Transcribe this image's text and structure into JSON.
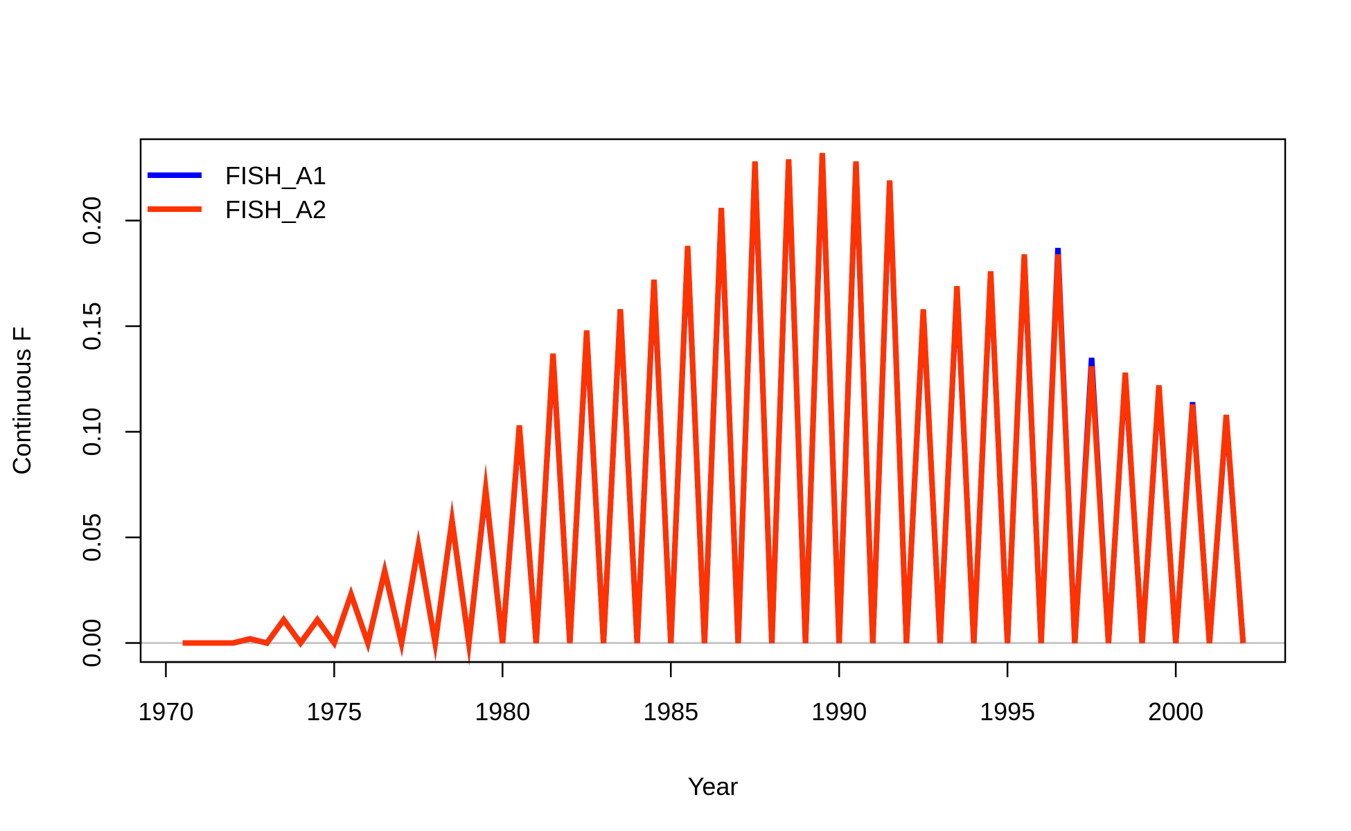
{
  "chart_data": {
    "type": "line",
    "title": "",
    "xlabel": "Year",
    "ylabel": "Continuous F",
    "xlim": [
      1969.25,
      2003.25
    ],
    "ylim": [
      -0.009,
      0.2385
    ],
    "x_ticks": [
      1970,
      1975,
      1980,
      1985,
      1990,
      1995,
      2000
    ],
    "x_tick_labels": [
      "1970",
      "1975",
      "1980",
      "1985",
      "1990",
      "1995",
      "2000"
    ],
    "y_ticks": [
      0.0,
      0.05,
      0.1,
      0.15,
      0.2
    ],
    "y_tick_labels": [
      "0.00",
      "0.05",
      "0.10",
      "0.15",
      "0.20"
    ],
    "grid": false,
    "reference_line": {
      "y": 0,
      "color": "#bebebe"
    },
    "legend": {
      "position": "top-left"
    },
    "x": [
      1970.5,
      1971.0,
      1971.5,
      1972.0,
      1972.5,
      1973.0,
      1973.5,
      1974.0,
      1974.5,
      1975.0,
      1975.5,
      1976.0,
      1976.5,
      1977.0,
      1977.5,
      1978.0,
      1978.5,
      1979.0,
      1979.5,
      1980.0,
      1980.5,
      1981.0,
      1981.5,
      1982.0,
      1982.5,
      1983.0,
      1983.5,
      1984.0,
      1984.5,
      1985.0,
      1985.5,
      1986.0,
      1986.5,
      1987.0,
      1987.5,
      1988.0,
      1988.5,
      1989.0,
      1989.5,
      1990.0,
      1990.5,
      1991.0,
      1991.5,
      1992.0,
      1992.5,
      1993.0,
      1993.5,
      1994.0,
      1994.5,
      1995.0,
      1995.5,
      1996.0,
      1996.5,
      1997.0,
      1997.5,
      1998.0,
      1998.5,
      1999.0,
      1999.5,
      2000.0,
      2000.5,
      2001.0,
      2001.5,
      2002.0
    ],
    "series": [
      {
        "name": "FISH_A1",
        "color": "#0000ff",
        "values": [
          0,
          0,
          0,
          0,
          0.002,
          0,
          0.011,
          0,
          0.011,
          0,
          0.023,
          0,
          0.034,
          0,
          0.046,
          0,
          0.058,
          0,
          0.072,
          0,
          0.102,
          0,
          0.136,
          0,
          0.147,
          0,
          0.158,
          0,
          0.171,
          0,
          0.187,
          0,
          0.205,
          0,
          0.227,
          0,
          0.228,
          0,
          0.231,
          0,
          0.227,
          0,
          0.218,
          0,
          0.157,
          0,
          0.168,
          0,
          0.175,
          0,
          0.183,
          0,
          0.187,
          0,
          0.135,
          0,
          0.127,
          0,
          0.121,
          0,
          0.114,
          0,
          0.107,
          0
        ]
      },
      {
        "name": "FISH_A2",
        "color": "#ff3300",
        "values": [
          0,
          0,
          0,
          0,
          0.002,
          0,
          0.011,
          0,
          0.011,
          0,
          0.023,
          0,
          0.034,
          0,
          0.046,
          0,
          0.058,
          0,
          0.073,
          0,
          0.103,
          0,
          0.137,
          0,
          0.148,
          0,
          0.158,
          0,
          0.172,
          0,
          0.188,
          0,
          0.206,
          0,
          0.228,
          0,
          0.229,
          0,
          0.232,
          0,
          0.228,
          0,
          0.219,
          0,
          0.158,
          0,
          0.169,
          0,
          0.176,
          0,
          0.184,
          0,
          0.184,
          0,
          0.131,
          0,
          0.128,
          0,
          0.122,
          0,
          0.113,
          0,
          0.108,
          0
        ]
      }
    ]
  }
}
